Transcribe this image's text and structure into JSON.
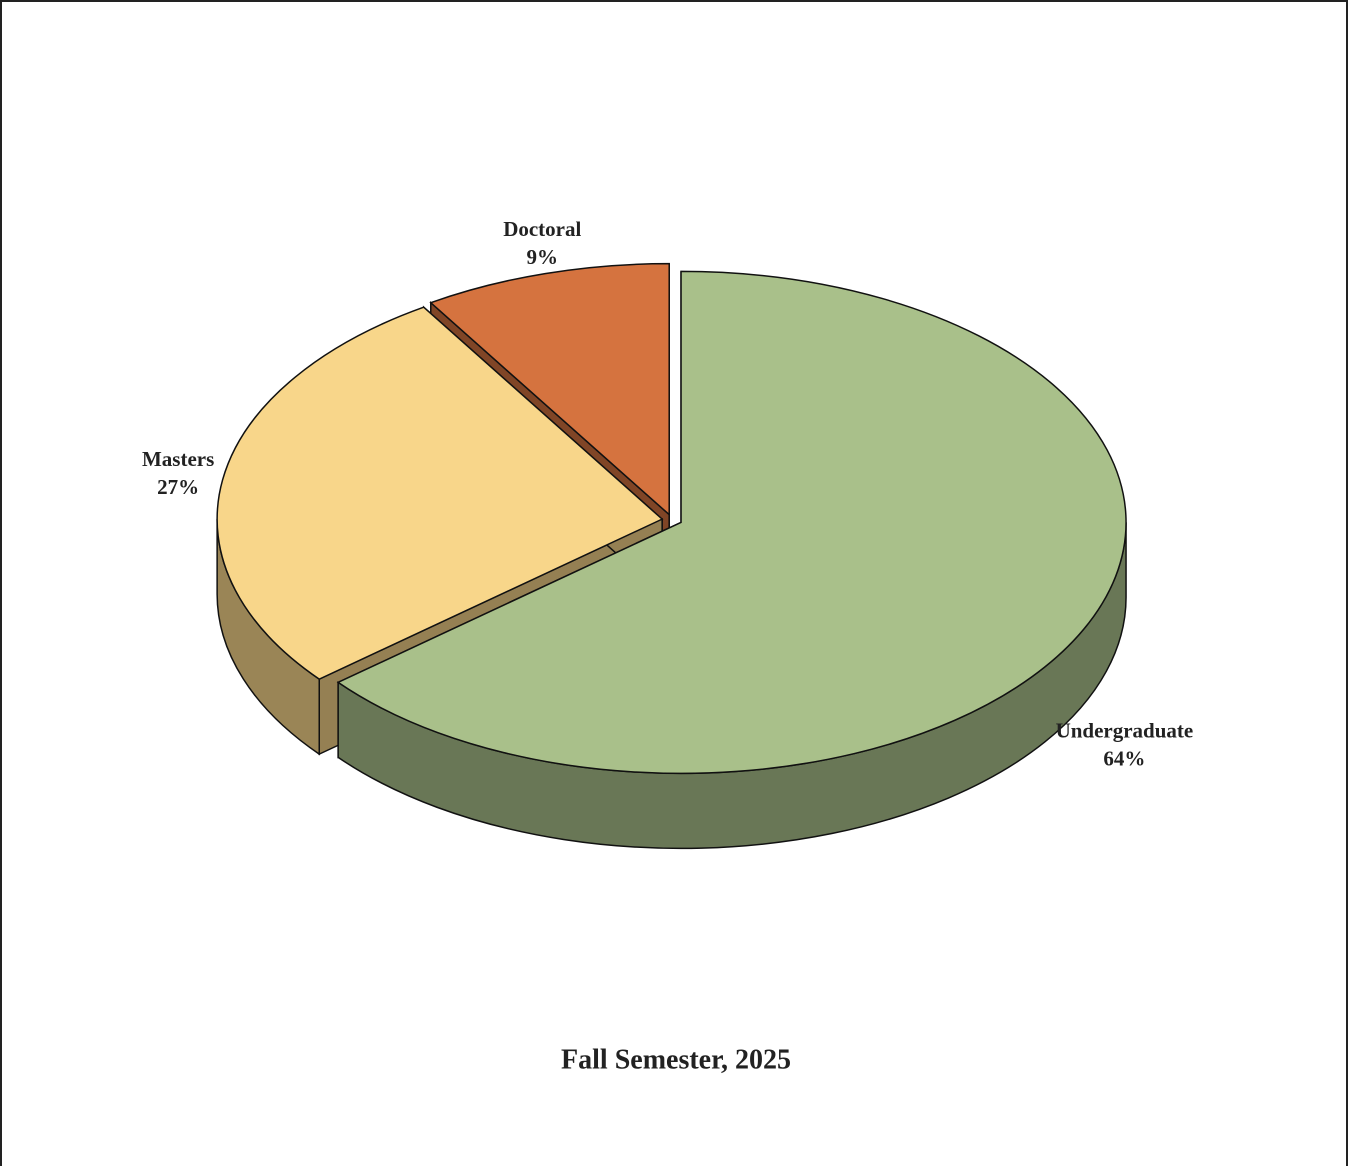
{
  "chart_data": {
    "type": "pie",
    "title": "Fall Semester, 2025",
    "categories": [
      "Undergraduate",
      "Masters",
      "Doctoral"
    ],
    "values": [
      64,
      27,
      9
    ],
    "value_labels": [
      "64%",
      "27%",
      "9%"
    ],
    "colors": [
      "#a9c08a",
      "#f8d68a",
      "#d5733f"
    ]
  }
}
